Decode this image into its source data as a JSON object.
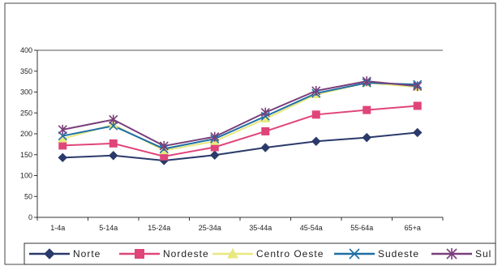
{
  "chart_data": {
    "type": "line",
    "categories": [
      "1-4a",
      "5-14a",
      "15-24a",
      "25-34a",
      "35-44a",
      "45-54a",
      "55-64a",
      "65+a"
    ],
    "ylim": [
      0,
      400
    ],
    "yticks": [
      "0",
      "50",
      "100",
      "150",
      "200",
      "250",
      "300",
      "350",
      "400"
    ],
    "grid": false,
    "legend_position": "bottom",
    "series": [
      {
        "name": "Norte",
        "color": "#2a3a6a",
        "marker": "diamond",
        "values": [
          143,
          148,
          136,
          149,
          167,
          182,
          191,
          203
        ]
      },
      {
        "name": "Nordeste",
        "color": "#e0457a",
        "marker": "square",
        "values": [
          172,
          177,
          146,
          168,
          206,
          246,
          257,
          267
        ]
      },
      {
        "name": "Centro Oeste",
        "color": "#e8e880",
        "marker": "triangle",
        "values": [
          188,
          222,
          160,
          182,
          236,
          294,
          322,
          312
        ]
      },
      {
        "name": "Sudeste",
        "color": "#1d6fa5",
        "marker": "x",
        "values": [
          195,
          219,
          164,
          188,
          242,
          297,
          322,
          318
        ]
      },
      {
        "name": "Sul",
        "color": "#7a3f7a",
        "marker": "star",
        "values": [
          210,
          234,
          171,
          193,
          251,
          303,
          326,
          314
        ]
      }
    ]
  }
}
